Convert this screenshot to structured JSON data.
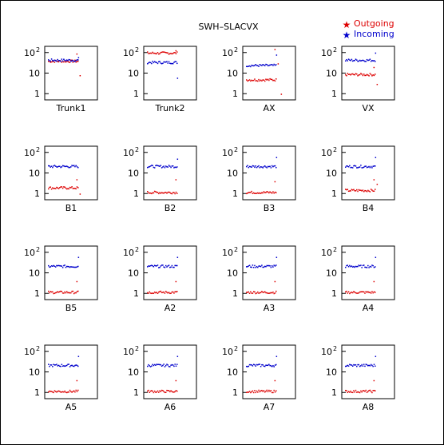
{
  "figure": {
    "title": "SWH–SLACVX",
    "legend": [
      {
        "label": "Outgoing",
        "color": "#dd0000"
      },
      {
        "label": "Incoming",
        "color": "#0000cc"
      }
    ],
    "legend_position": "top-right"
  },
  "chart_data": [
    {
      "type": "scatter",
      "label": "Trunk1",
      "yscale": "log",
      "ylim": [
        0.5,
        200
      ],
      "yticks": [
        "1",
        "10",
        "10^2"
      ],
      "series": [
        {
          "name": "Outgoing",
          "y_typical": 40,
          "outliers": [
            90,
            8
          ]
        },
        {
          "name": "Incoming",
          "y_typical": 45,
          "outliers": [
            60
          ]
        }
      ]
    },
    {
      "type": "scatter",
      "label": "Trunk2",
      "yscale": "log",
      "ylim": [
        0.5,
        200
      ],
      "yticks": [
        "1",
        "10",
        "10^2"
      ],
      "series": [
        {
          "name": "Outgoing",
          "y_typical": 100,
          "outliers": [
            130
          ]
        },
        {
          "name": "Incoming",
          "y_typical": 35,
          "outliers": [
            6
          ]
        }
      ]
    },
    {
      "type": "scatter",
      "label": "AX",
      "yscale": "log",
      "ylim": [
        0.5,
        200
      ],
      "yticks": [
        "1",
        "10",
        "10^2"
      ],
      "series": [
        {
          "name": "Outgoing",
          "y_typical": 5,
          "outliers": [
            150,
            30,
            1
          ]
        },
        {
          "name": "Incoming",
          "y_typical": 25,
          "outliers": [
            80
          ]
        }
      ]
    },
    {
      "type": "scatter",
      "label": "VX",
      "yscale": "log",
      "ylim": [
        0.5,
        200
      ],
      "yticks": [
        "1",
        "10",
        "10^2"
      ],
      "series": [
        {
          "name": "Outgoing",
          "y_typical": 9,
          "outliers": [
            20,
            3
          ]
        },
        {
          "name": "Incoming",
          "y_typical": 45,
          "outliers": [
            100
          ]
        }
      ]
    },
    {
      "type": "scatter",
      "label": "B1",
      "yscale": "log",
      "ylim": [
        0.5,
        200
      ],
      "yticks": [
        "1",
        "10",
        "10^2"
      ],
      "series": [
        {
          "name": "Outgoing",
          "y_typical": 2,
          "outliers": [
            5,
            1
          ]
        },
        {
          "name": "Incoming",
          "y_typical": 22,
          "outliers": []
        }
      ]
    },
    {
      "type": "scatter",
      "label": "B2",
      "yscale": "log",
      "ylim": [
        0.5,
        200
      ],
      "yticks": [
        "1",
        "10",
        "10^2"
      ],
      "series": [
        {
          "name": "Outgoing",
          "y_typical": 1.2,
          "outliers": [
            5
          ]
        },
        {
          "name": "Incoming",
          "y_typical": 22,
          "outliers": [
            50
          ]
        }
      ]
    },
    {
      "type": "scatter",
      "label": "B3",
      "yscale": "log",
      "ylim": [
        0.5,
        200
      ],
      "yticks": [
        "1",
        "10",
        "10^2"
      ],
      "series": [
        {
          "name": "Outgoing",
          "y_typical": 1.2,
          "outliers": [
            4
          ]
        },
        {
          "name": "Incoming",
          "y_typical": 22,
          "outliers": [
            60
          ]
        }
      ]
    },
    {
      "type": "scatter",
      "label": "B4",
      "yscale": "log",
      "ylim": [
        0.5,
        200
      ],
      "yticks": [
        "1",
        "10",
        "10^2"
      ],
      "series": [
        {
          "name": "Outgoing",
          "y_typical": 1.5,
          "outliers": [
            5,
            3
          ]
        },
        {
          "name": "Incoming",
          "y_typical": 22,
          "outliers": [
            60
          ]
        }
      ]
    },
    {
      "type": "scatter",
      "label": "B5",
      "yscale": "log",
      "ylim": [
        0.5,
        200
      ],
      "yticks": [
        "1",
        "10",
        "10^2"
      ],
      "series": [
        {
          "name": "Outgoing",
          "y_typical": 1.2,
          "outliers": [
            4
          ]
        },
        {
          "name": "Incoming",
          "y_typical": 22,
          "outliers": [
            60
          ]
        }
      ]
    },
    {
      "type": "scatter",
      "label": "A2",
      "yscale": "log",
      "ylim": [
        0.5,
        200
      ],
      "yticks": [
        "1",
        "10",
        "10^2"
      ],
      "series": [
        {
          "name": "Outgoing",
          "y_typical": 1.2,
          "outliers": [
            4
          ]
        },
        {
          "name": "Incoming",
          "y_typical": 22,
          "outliers": [
            60
          ]
        }
      ]
    },
    {
      "type": "scatter",
      "label": "A3",
      "yscale": "log",
      "ylim": [
        0.5,
        200
      ],
      "yticks": [
        "1",
        "10",
        "10^2"
      ],
      "series": [
        {
          "name": "Outgoing",
          "y_typical": 1.2,
          "outliers": [
            4
          ]
        },
        {
          "name": "Incoming",
          "y_typical": 22,
          "outliers": [
            60
          ]
        }
      ]
    },
    {
      "type": "scatter",
      "label": "A4",
      "yscale": "log",
      "ylim": [
        0.5,
        200
      ],
      "yticks": [
        "1",
        "10",
        "10^2"
      ],
      "series": [
        {
          "name": "Outgoing",
          "y_typical": 1.2,
          "outliers": [
            4
          ]
        },
        {
          "name": "Incoming",
          "y_typical": 22,
          "outliers": [
            60
          ]
        }
      ]
    },
    {
      "type": "scatter",
      "label": "A5",
      "yscale": "log",
      "ylim": [
        0.5,
        200
      ],
      "yticks": [
        "1",
        "10",
        "10^2"
      ],
      "series": [
        {
          "name": "Outgoing",
          "y_typical": 1.2,
          "outliers": [
            4
          ]
        },
        {
          "name": "Incoming",
          "y_typical": 22,
          "outliers": [
            60
          ]
        }
      ]
    },
    {
      "type": "scatter",
      "label": "A6",
      "yscale": "log",
      "ylim": [
        0.5,
        200
      ],
      "yticks": [
        "1",
        "10",
        "10^2"
      ],
      "series": [
        {
          "name": "Outgoing",
          "y_typical": 1.2,
          "outliers": [
            4
          ]
        },
        {
          "name": "Incoming",
          "y_typical": 22,
          "outliers": [
            60
          ]
        }
      ]
    },
    {
      "type": "scatter",
      "label": "A7",
      "yscale": "log",
      "ylim": [
        0.5,
        200
      ],
      "yticks": [
        "1",
        "10",
        "10^2"
      ],
      "series": [
        {
          "name": "Outgoing",
          "y_typical": 1.2,
          "outliers": [
            4
          ]
        },
        {
          "name": "Incoming",
          "y_typical": 22,
          "outliers": [
            60
          ]
        }
      ]
    },
    {
      "type": "scatter",
      "label": "A8",
      "yscale": "log",
      "ylim": [
        0.5,
        200
      ],
      "yticks": [
        "1",
        "10",
        "10^2"
      ],
      "series": [
        {
          "name": "Outgoing",
          "y_typical": 1.2,
          "outliers": [
            4
          ]
        },
        {
          "name": "Incoming",
          "y_typical": 22,
          "outliers": [
            60
          ]
        }
      ]
    }
  ]
}
